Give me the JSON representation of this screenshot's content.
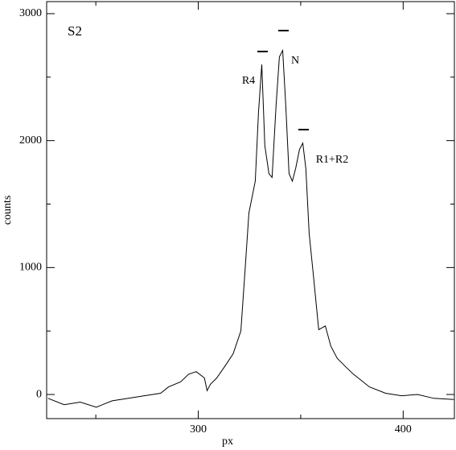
{
  "chart_data": {
    "type": "line",
    "x_label": "px",
    "y_label": "counts",
    "annotations": [
      "S2",
      "R4",
      "N",
      "R1+R2"
    ],
    "xlim": [
      226,
      425
    ],
    "ylim": [
      -190,
      3095
    ],
    "xticks": [
      300,
      400
    ],
    "xticks_minor": [
      250,
      350
    ],
    "yticks": [
      0,
      1000,
      2000,
      3000
    ],
    "yticks_minor": [
      500,
      1500,
      2500
    ],
    "series": [
      {
        "name": "S2",
        "color": "#000000",
        "x": [
          226.7,
          234.5,
          242.4,
          250.2,
          258,
          265.9,
          273.7,
          281.6,
          285.5,
          291.4,
          295.3,
          299,
          303,
          304.3,
          305.9,
          309,
          312.9,
          317,
          320.8,
          322.7,
          324.7,
          327.8,
          329.4,
          331,
          332.5,
          334.5,
          336,
          338,
          339.6,
          341.2,
          342.7,
          344.3,
          345.9,
          347.5,
          349.4,
          351,
          352.5,
          354.1,
          356.1,
          358.8,
          362,
          364.7,
          367.8,
          371.8,
          375.7,
          383.5,
          391.4,
          399.2,
          407,
          414.9,
          424.7
        ],
        "values": [
          -30,
          -80,
          -60,
          -100,
          -50,
          -30,
          -10,
          10,
          60,
          100,
          160,
          180,
          130,
          30,
          80,
          130,
          220,
          320,
          500,
          950,
          1430,
          1680,
          2220,
          2600,
          1960,
          1740,
          1710,
          2280,
          2660,
          2710,
          2280,
          1740,
          1680,
          1780,
          1930,
          1980,
          1780,
          1270,
          950,
          510,
          540,
          380,
          285,
          220,
          160,
          60,
          10,
          -10,
          0,
          -30,
          -40
        ]
      }
    ]
  }
}
